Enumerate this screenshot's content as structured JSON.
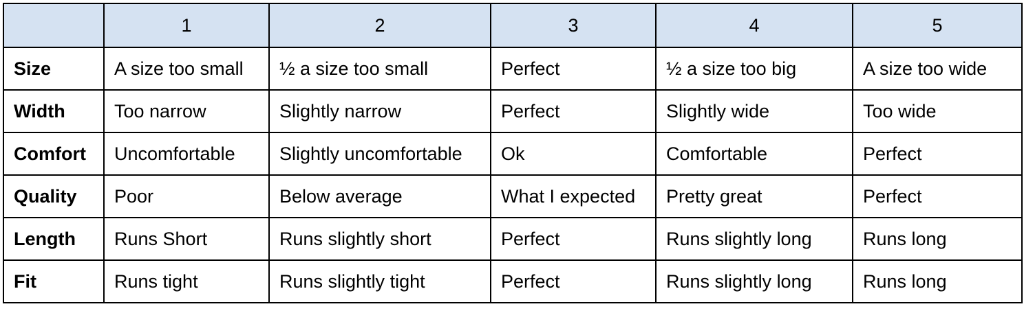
{
  "table": {
    "header": {
      "corner": "",
      "columns": [
        "1",
        "2",
        "3",
        "4",
        "5"
      ]
    },
    "rows": [
      {
        "label": "Size",
        "cells": [
          "A size too small",
          "½ a size too small",
          "Perfect",
          "½ a size too big",
          "A size too wide"
        ]
      },
      {
        "label": "Width",
        "cells": [
          "Too narrow",
          "Slightly narrow",
          "Perfect",
          "Slightly wide",
          "Too wide"
        ]
      },
      {
        "label": "Comfort",
        "cells": [
          "Uncomfortable",
          "Slightly uncomfortable",
          "Ok",
          "Comfortable",
          "Perfect"
        ]
      },
      {
        "label": "Quality",
        "cells": [
          "Poor",
          "Below average",
          "What I expected",
          "Pretty great",
          "Perfect"
        ]
      },
      {
        "label": "Length",
        "cells": [
          "Runs Short",
          "Runs slightly short",
          "Perfect",
          "Runs slightly long",
          "Runs long"
        ]
      },
      {
        "label": "Fit",
        "cells": [
          "Runs tight",
          "Runs slightly tight",
          "Perfect",
          "Runs slightly long",
          "Runs long"
        ]
      }
    ],
    "colors": {
      "header_background": "#d5e2f2",
      "border": "#000000"
    }
  }
}
